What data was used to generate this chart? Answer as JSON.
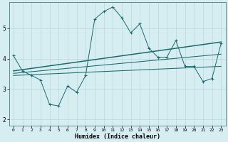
{
  "xlabel": "Humidex (Indice chaleur)",
  "bg_color": "#d6eef2",
  "grid_color": "#b8d8de",
  "line_color": "#1a6b6b",
  "xlim": [
    -0.5,
    23.5
  ],
  "ylim": [
    1.8,
    5.85
  ],
  "xticks": [
    0,
    1,
    2,
    3,
    4,
    5,
    6,
    7,
    8,
    9,
    10,
    11,
    12,
    13,
    14,
    15,
    16,
    17,
    18,
    19,
    20,
    21,
    22,
    23
  ],
  "yticks": [
    2,
    3,
    4,
    5
  ],
  "series1_x": [
    0,
    1,
    2,
    3,
    4,
    5,
    6,
    7,
    8,
    9,
    10,
    11,
    12,
    13,
    14,
    15,
    16,
    17,
    18,
    19,
    20,
    21,
    22,
    23
  ],
  "series1_y": [
    4.1,
    3.6,
    3.45,
    3.3,
    2.5,
    2.45,
    3.1,
    2.9,
    3.45,
    5.3,
    5.55,
    5.7,
    5.35,
    4.85,
    5.15,
    4.35,
    4.05,
    4.05,
    4.6,
    3.75,
    3.75,
    3.25,
    3.35,
    4.5
  ],
  "series2_x": [
    0,
    23
  ],
  "series2_y": [
    3.45,
    3.75
  ],
  "series3_x": [
    0,
    23
  ],
  "series3_y": [
    3.52,
    4.15
  ],
  "series4_x": [
    0,
    23
  ],
  "series4_y": [
    3.6,
    4.55
  ]
}
